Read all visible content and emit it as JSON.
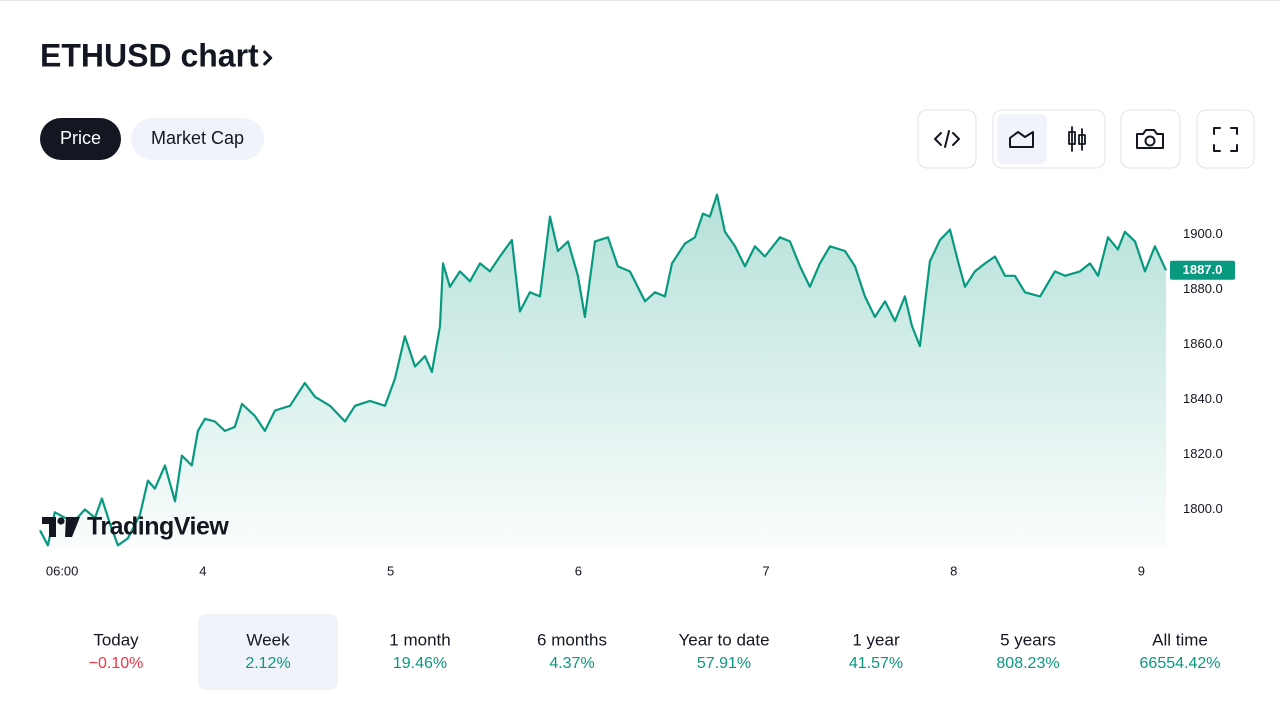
{
  "header": {
    "title": "ETHUSD chart"
  },
  "tabs": {
    "items": [
      "Price",
      "Market Cap"
    ],
    "active": 0
  },
  "logo": "TradingView",
  "chart_data": {
    "type": "area",
    "color": "#089981",
    "x": [
      3.132,
      3.174,
      3.211,
      3.265,
      3.318,
      3.371,
      3.425,
      3.462,
      3.504,
      3.547,
      3.6,
      3.664,
      3.707,
      3.744,
      3.798,
      3.851,
      3.888,
      3.941,
      3.973,
      4.011,
      4.064,
      4.117,
      4.17,
      4.208,
      4.277,
      4.33,
      4.384,
      4.464,
      4.543,
      4.597,
      4.677,
      4.757,
      4.81,
      4.89,
      4.97,
      5.023,
      5.076,
      5.13,
      5.183,
      5.22,
      5.263,
      5.279,
      5.316,
      5.369,
      5.423,
      5.476,
      5.529,
      5.582,
      5.646,
      5.689,
      5.742,
      5.796,
      5.849,
      5.891,
      5.945,
      5.998,
      6.035,
      6.089,
      6.158,
      6.211,
      6.275,
      6.355,
      6.408,
      6.462,
      6.499,
      6.568,
      6.621,
      6.664,
      6.701,
      6.739,
      6.781,
      6.835,
      6.888,
      6.941,
      6.994,
      7.074,
      7.127,
      7.181,
      7.234,
      7.287,
      7.341,
      7.421,
      7.474,
      7.527,
      7.58,
      7.634,
      7.687,
      7.74,
      7.778,
      7.82,
      7.873,
      7.927,
      7.98,
      8.023,
      8.06,
      8.113,
      8.167,
      8.22,
      8.273,
      8.326,
      8.38,
      8.46,
      8.539,
      8.593,
      8.673,
      8.726,
      8.769,
      8.822,
      8.875,
      8.912,
      8.966,
      9.019,
      9.072,
      9.131
    ],
    "values": [
      1792.4,
      1787,
      1799,
      1797,
      1796,
      1800,
      1797,
      1804,
      1795,
      1787,
      1789.5,
      1798,
      1810.5,
      1807.6,
      1816,
      1803,
      1819.6,
      1816,
      1828.6,
      1833,
      1832,
      1828.6,
      1830,
      1838.4,
      1834,
      1828.6,
      1836,
      1837.7,
      1846,
      1841,
      1837.7,
      1832,
      1837.7,
      1839.5,
      1837.7,
      1847.5,
      1863,
      1852,
      1855.8,
      1850,
      1866.7,
      1889.5,
      1881,
      1886.6,
      1883,
      1889.5,
      1886.6,
      1892,
      1898,
      1872,
      1879,
      1877.5,
      1906.5,
      1894,
      1897.5,
      1885,
      1870,
      1897.5,
      1899,
      1888.4,
      1886.6,
      1875.7,
      1879,
      1877.5,
      1889.5,
      1896.7,
      1899,
      1907.6,
      1906.5,
      1914.5,
      1901,
      1895.7,
      1888.4,
      1895.7,
      1892,
      1899,
      1897.5,
      1888.4,
      1881,
      1889.5,
      1895.7,
      1894,
      1888.4,
      1877.5,
      1870,
      1875.7,
      1868.5,
      1877.5,
      1866.7,
      1859.4,
      1890.2,
      1898,
      1901.8,
      1890.2,
      1881,
      1886.6,
      1889.5,
      1892,
      1885,
      1885,
      1879,
      1877.5,
      1886.6,
      1885,
      1886.6,
      1889.5,
      1885,
      1899,
      1894.6,
      1901,
      1897.5,
      1886.6,
      1895.7,
      1887
    ],
    "xlim": [
      3.132,
      9.131
    ],
    "xticks": [
      {
        "value": 3.25,
        "label": "06:00"
      },
      4,
      5,
      6,
      7,
      8,
      9
    ],
    "ylim": [
      1786,
      1918
    ],
    "yticks": [
      {
        "value": 1800,
        "label": "1800.0"
      },
      {
        "value": 1820,
        "label": "1820.0"
      },
      {
        "value": 1840,
        "label": "1840.0"
      },
      {
        "value": 1860,
        "label": "1860.0"
      },
      {
        "value": 1880,
        "label": "1880.0"
      },
      {
        "value": 1900,
        "label": "1900.0"
      }
    ],
    "last_price": {
      "value": 1887,
      "label": "1887.0"
    }
  },
  "periods": {
    "selected": 1,
    "items": [
      {
        "label": "Today",
        "change": "−0.10%"
      },
      {
        "label": "Week",
        "change": "2.12%"
      },
      {
        "label": "1 month",
        "change": "19.46%"
      },
      {
        "label": "6 months",
        "change": "4.37%"
      },
      {
        "label": "Year to date",
        "change": "57.91%"
      },
      {
        "label": "1 year",
        "change": "41.57%"
      },
      {
        "label": "5 years",
        "change": "808.23%"
      },
      {
        "label": "All time",
        "change": "66554.42%"
      }
    ]
  }
}
